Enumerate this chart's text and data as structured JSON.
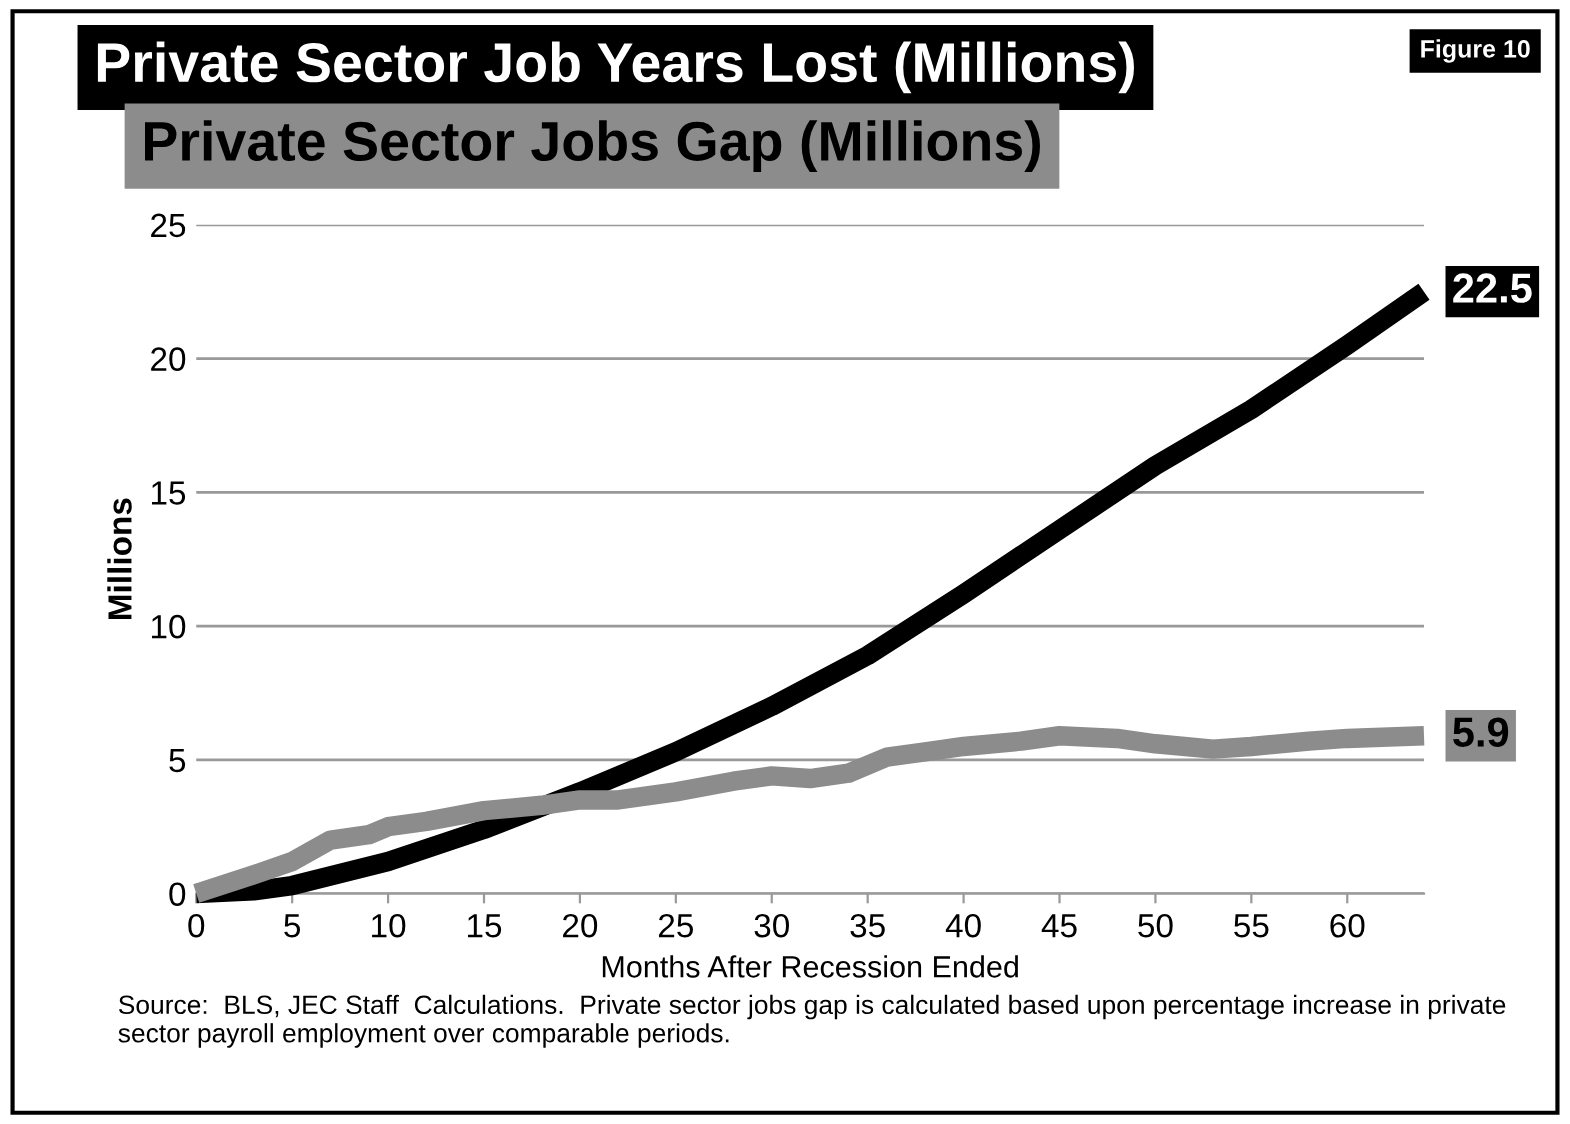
{
  "chart_data": {
    "type": "line",
    "xlabel": "Months After Recession Ended",
    "ylabel": "Millions",
    "annotations": [
      "Figure 10",
      "Source:  BLS, JEC Staff  Calculations.  Private sector jobs gap is calculated based upon percentage increase in private sector payroll employment over comparable periods."
    ],
    "series": [
      {
        "name": "Private Sector Job Years Lost (Millions)",
        "color": "#000000",
        "x": [
          0,
          3,
          5,
          10,
          15,
          20,
          25,
          30,
          35,
          40,
          45,
          50,
          55,
          60,
          64
        ],
        "values": [
          0,
          0.1,
          0.3,
          1.2,
          2.4,
          3.8,
          5.3,
          7.0,
          8.9,
          11.2,
          13.6,
          16.0,
          18.1,
          20.5,
          22.5
        ],
        "value_labels": [
          null,
          null,
          null,
          null,
          null,
          null,
          null,
          null,
          null,
          null,
          null,
          null,
          null,
          null,
          "22.5"
        ]
      },
      {
        "name": "Private Sector Jobs Gap (Millions)",
        "color": "#8c8c8c",
        "x": [
          0,
          3,
          5,
          7,
          9,
          10,
          12,
          15,
          18,
          20,
          22,
          25,
          28,
          30,
          32,
          34,
          36,
          38,
          40,
          43,
          45,
          48,
          50,
          53,
          55,
          58,
          60,
          64
        ],
        "values": [
          0,
          0.7,
          1.2,
          2.0,
          2.2,
          2.5,
          2.7,
          3.1,
          3.3,
          3.5,
          3.5,
          3.8,
          4.2,
          4.4,
          4.3,
          4.5,
          5.1,
          5.3,
          5.5,
          5.7,
          5.9,
          5.8,
          5.6,
          5.4,
          5.5,
          5.7,
          5.8,
          5.9
        ],
        "value_labels": [
          null,
          null,
          null,
          null,
          null,
          null,
          null,
          null,
          null,
          null,
          null,
          null,
          null,
          null,
          null,
          null,
          null,
          null,
          null,
          null,
          null,
          null,
          null,
          null,
          null,
          null,
          null,
          "5.9"
        ]
      }
    ],
    "xlim": [
      0,
      64
    ],
    "xticks": [
      0,
      5,
      10,
      15,
      20,
      25,
      30,
      35,
      40,
      45,
      50,
      55,
      60
    ],
    "ylim": [
      0,
      25
    ],
    "yticks": [
      0,
      5,
      10,
      15,
      20,
      25
    ],
    "grid": "y",
    "legend": "top",
    "marker": "none",
    "line_style": "solid"
  }
}
